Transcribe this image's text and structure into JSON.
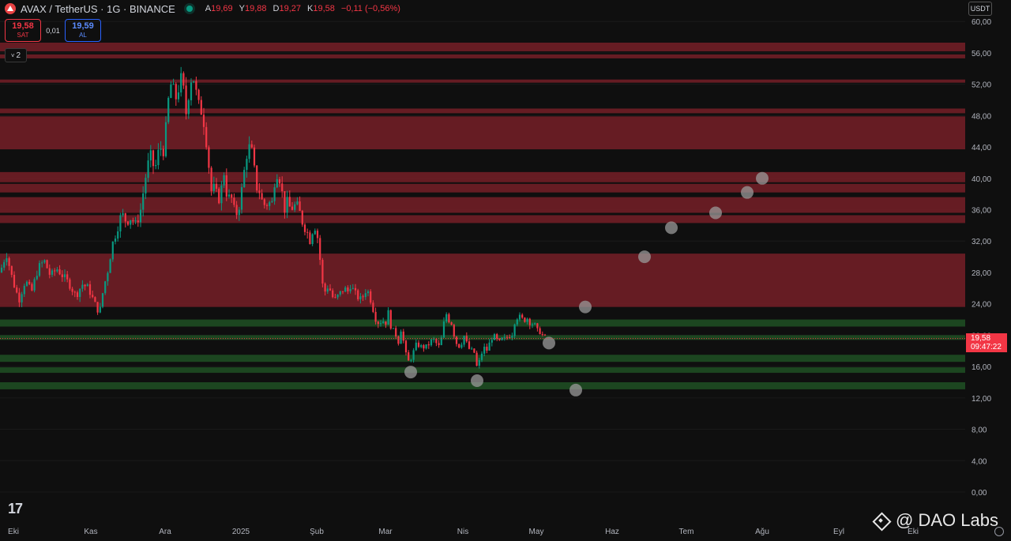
{
  "header": {
    "symbol": "AVAX / TetherUS · 1G · BINANCE",
    "ohlc": [
      {
        "k": "A",
        "v": "19,69"
      },
      {
        "k": "Y",
        "v": "19,88"
      },
      {
        "k": "D",
        "v": "19,27"
      },
      {
        "k": "K",
        "v": "19,58"
      },
      {
        "k": "",
        "v": "−0,11 (−0,56%)"
      }
    ]
  },
  "order": {
    "sell_price": "19,58",
    "sell_label": "SAT",
    "spread": "0,01",
    "buy_price": "19,59",
    "buy_label": "AL"
  },
  "indicator_toggle": "2",
  "currency": "USDT",
  "last_price": {
    "price": "19,58",
    "countdown": "09:47:22",
    "value": 19.58
  },
  "watermark": "@ DAO Labs",
  "colors": {
    "up": "#089981",
    "down": "#f23645",
    "res_zone": "#6b1e25",
    "sup_zone": "#1e4a22",
    "marker": "#9a9a9a"
  },
  "chart_data": {
    "type": "candlestick",
    "y_ticks": [
      "60,00",
      "56,00",
      "52,00",
      "48,00",
      "44,00",
      "40,00",
      "36,00",
      "32,00",
      "28,00",
      "24,00",
      "20,00",
      "16,00",
      "12,00",
      "8,00",
      "4,00",
      "0,00"
    ],
    "y_tick_values": [
      60,
      56,
      52,
      48,
      44,
      40,
      36,
      32,
      28,
      24,
      20,
      16,
      12,
      8,
      4,
      0
    ],
    "ylim": [
      0,
      60
    ],
    "x_ticks": [
      "Eki",
      "Kas",
      "Ara",
      "2025",
      "Şub",
      "Mar",
      "Nis",
      "May",
      "Haz",
      "Tem",
      "Ağu",
      "Eyl",
      "Eki"
    ],
    "resistance_zones": [
      [
        56.2,
        57.3
      ],
      [
        55.3,
        55.8
      ],
      [
        52.2,
        52.6
      ],
      [
        48.3,
        48.9
      ],
      [
        43.7,
        47.9
      ],
      [
        39.5,
        40.8
      ],
      [
        38.2,
        39.3
      ],
      [
        35.6,
        37.6
      ],
      [
        34.3,
        35.3
      ],
      [
        23.6,
        30.4
      ]
    ],
    "support_zones": [
      [
        21.1,
        22.0
      ],
      [
        19.4,
        20.0
      ],
      [
        16.6,
        17.5
      ],
      [
        15.2,
        15.9
      ],
      [
        13.1,
        14.0
      ]
    ],
    "price_path": [
      [
        0,
        28
      ],
      [
        8,
        30.5
      ],
      [
        16,
        27
      ],
      [
        24,
        24.5
      ],
      [
        32,
        27
      ],
      [
        40,
        25.5
      ],
      [
        48,
        28.5
      ],
      [
        56,
        29.5
      ],
      [
        64,
        27.5
      ],
      [
        72,
        28.5
      ],
      [
        80,
        27.5
      ],
      [
        88,
        26.5
      ],
      [
        96,
        25
      ],
      [
        104,
        26.5
      ],
      [
        112,
        26
      ],
      [
        120,
        24
      ],
      [
        126,
        22.8
      ],
      [
        131,
        26
      ],
      [
        136,
        28
      ],
      [
        142,
        31.5
      ],
      [
        148,
        33.5
      ],
      [
        154,
        35.5
      ],
      [
        160,
        34.5
      ],
      [
        166,
        35
      ],
      [
        172,
        34
      ],
      [
        178,
        36
      ],
      [
        184,
        40
      ],
      [
        190,
        43
      ],
      [
        196,
        41
      ],
      [
        202,
        44
      ],
      [
        208,
        43.5
      ],
      [
        212,
        49
      ],
      [
        216,
        52
      ],
      [
        220,
        51
      ],
      [
        224,
        50
      ],
      [
        228,
        53
      ],
      [
        232,
        51.5
      ],
      [
        236,
        48
      ],
      [
        240,
        52
      ],
      [
        244,
        53.5
      ],
      [
        248,
        51
      ],
      [
        252,
        49
      ],
      [
        256,
        48.5
      ],
      [
        260,
        46
      ],
      [
        264,
        42
      ],
      [
        268,
        38
      ],
      [
        272,
        39
      ],
      [
        276,
        37
      ],
      [
        280,
        38.5
      ],
      [
        284,
        41
      ],
      [
        288,
        37
      ],
      [
        292,
        38
      ],
      [
        296,
        36
      ],
      [
        300,
        35.5
      ],
      [
        304,
        37
      ],
      [
        308,
        40
      ],
      [
        312,
        43
      ],
      [
        316,
        44
      ],
      [
        320,
        43
      ],
      [
        324,
        39
      ],
      [
        328,
        38.5
      ],
      [
        332,
        37
      ],
      [
        336,
        36.5
      ],
      [
        340,
        37
      ],
      [
        344,
        36.5
      ],
      [
        348,
        40
      ],
      [
        352,
        41
      ],
      [
        356,
        39
      ],
      [
        360,
        36
      ],
      [
        364,
        37
      ],
      [
        368,
        36
      ],
      [
        372,
        36.5
      ],
      [
        376,
        36.5
      ],
      [
        380,
        35.5
      ],
      [
        384,
        34
      ],
      [
        388,
        33.5
      ],
      [
        392,
        32
      ],
      [
        396,
        33.5
      ],
      [
        400,
        34
      ],
      [
        404,
        31
      ],
      [
        408,
        26.5
      ],
      [
        412,
        25.5
      ],
      [
        416,
        26.5
      ],
      [
        420,
        25
      ],
      [
        424,
        24.5
      ],
      [
        428,
        25
      ],
      [
        432,
        25.5
      ],
      [
        436,
        26
      ],
      [
        440,
        25.5
      ],
      [
        444,
        26.5
      ],
      [
        448,
        25.5
      ],
      [
        452,
        25
      ],
      [
        456,
        24.5
      ],
      [
        460,
        25
      ],
      [
        464,
        26
      ],
      [
        468,
        25
      ],
      [
        472,
        23.5
      ],
      [
        476,
        22
      ],
      [
        480,
        21.5
      ],
      [
        484,
        22
      ],
      [
        488,
        21.5
      ],
      [
        492,
        23
      ],
      [
        496,
        20.5
      ],
      [
        500,
        20.5
      ],
      [
        504,
        19
      ],
      [
        508,
        21
      ],
      [
        512,
        18.5
      ],
      [
        516,
        16.5
      ],
      [
        520,
        17
      ],
      [
        524,
        18
      ],
      [
        528,
        19
      ],
      [
        532,
        18.5
      ],
      [
        536,
        18.5
      ],
      [
        540,
        18.5
      ],
      [
        544,
        19
      ],
      [
        548,
        19.5
      ],
      [
        552,
        19
      ],
      [
        556,
        18.5
      ],
      [
        560,
        20
      ],
      [
        564,
        23
      ],
      [
        568,
        22
      ],
      [
        572,
        21.5
      ],
      [
        576,
        19.5
      ],
      [
        580,
        18.5
      ],
      [
        584,
        19
      ],
      [
        588,
        20
      ],
      [
        592,
        18.5
      ],
      [
        596,
        18
      ],
      [
        600,
        18
      ],
      [
        604,
        15.8
      ],
      [
        608,
        17
      ],
      [
        612,
        18.5
      ],
      [
        616,
        18
      ],
      [
        620,
        19
      ],
      [
        624,
        20
      ],
      [
        628,
        19.5
      ],
      [
        632,
        19
      ],
      [
        636,
        19.5
      ],
      [
        640,
        19.5
      ],
      [
        644,
        20
      ],
      [
        648,
        20
      ],
      [
        652,
        22
      ],
      [
        656,
        22.5
      ],
      [
        660,
        22
      ],
      [
        664,
        22
      ],
      [
        668,
        22.2
      ],
      [
        672,
        21.5
      ],
      [
        676,
        21.5
      ],
      [
        680,
        20.5
      ],
      [
        684,
        20.5
      ],
      [
        688,
        19.8
      ],
      [
        692,
        19.58
      ]
    ],
    "projection_points": [
      [
        520,
        15.3
      ],
      [
        604,
        14.2
      ],
      [
        695,
        19.0
      ],
      [
        729,
        13
      ],
      [
        741,
        23.6
      ],
      [
        816,
        30
      ],
      [
        850,
        33.7
      ],
      [
        906,
        35.6
      ],
      [
        946,
        38.2
      ],
      [
        965,
        40
      ]
    ]
  }
}
